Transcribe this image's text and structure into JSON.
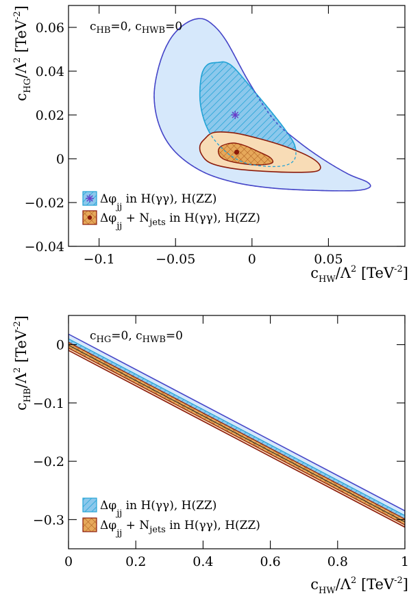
{
  "colors": {
    "blue_outer_fill": "#d6e8fb",
    "blue_outer_line": "#4646c8",
    "cyan_fill": "#8cc8ec",
    "cyan_line": "#23a3d6",
    "orange_outer_fill": "#f8dcb6",
    "orange_line": "#8b1a0a",
    "orange_inner_fill": "#e6a85a",
    "star": "#6a3cc8",
    "dot": "#8b1a0a"
  },
  "chart_data": [
    {
      "type": "contour",
      "panel": "top",
      "xlim": [
        -0.12,
        0.1
      ],
      "ylim": [
        -0.04,
        0.07
      ],
      "x_ticks": [
        -0.1,
        -0.05,
        0,
        0.05
      ],
      "y_ticks": [
        -0.04,
        -0.02,
        0,
        0.02,
        0.04,
        0.06
      ],
      "x_tick_labels": [
        "−0.1",
        "−0.05",
        "0",
        "0.05"
      ],
      "y_tick_labels": [
        "−0.04",
        "−0.02",
        "0",
        "0.02",
        "0.04",
        "0.06"
      ],
      "xlabel": {
        "main": "c",
        "sub": "HW",
        "rest": "/Λ",
        "sup": "2",
        "unit": " [TeV",
        "unit_sup": "-2",
        "close": "]"
      },
      "ylabel": {
        "main": "c",
        "sub": "HG",
        "rest": "/Λ",
        "sup": "2",
        "unit": " [TeV",
        "unit_sup": "-2",
        "close": "]"
      },
      "annotation": {
        "c1": "c",
        "s1": "HB",
        "t1": "=0,  c",
        "s2": "HWB",
        "t2": "=0"
      },
      "best_fit_dphi": [
        -0.011,
        0.02
      ],
      "best_fit_combined": [
        -0.01,
        0.003
      ],
      "contours": {
        "dphi_95": [
          [
            -0.035,
            0.064
          ],
          [
            -0.045,
            0.061
          ],
          [
            -0.054,
            0.054
          ],
          [
            -0.061,
            0.042
          ],
          [
            -0.064,
            0.028
          ],
          [
            -0.06,
            0.014
          ],
          [
            -0.05,
            0.003
          ],
          [
            -0.032,
            -0.006
          ],
          [
            -0.01,
            -0.011
          ],
          [
            0.015,
            -0.0135
          ],
          [
            0.045,
            -0.0145
          ],
          [
            0.068,
            -0.0145
          ],
          [
            0.077,
            -0.013
          ],
          [
            0.075,
            -0.0105
          ],
          [
            0.063,
            -0.007
          ],
          [
            0.046,
            0.0
          ],
          [
            0.03,
            0.008
          ],
          [
            0.014,
            0.018
          ],
          [
            -0.002,
            0.035
          ],
          [
            -0.017,
            0.054
          ],
          [
            -0.027,
            0.062
          ]
        ],
        "dphi_68": [
          [
            -0.022,
            0.044
          ],
          [
            -0.029,
            0.043
          ],
          [
            -0.033,
            0.038
          ],
          [
            -0.034,
            0.027
          ],
          [
            -0.031,
            0.017
          ],
          [
            -0.025,
            0.009
          ],
          [
            -0.015,
            0.002
          ],
          [
            -0.004,
            -0.002
          ],
          [
            0.01,
            -0.0035
          ],
          [
            0.022,
            -0.003
          ],
          [
            0.028,
            0.0
          ],
          [
            0.028,
            0.006
          ],
          [
            0.022,
            0.013
          ],
          [
            0.012,
            0.022
          ],
          [
            0.0,
            0.032
          ],
          [
            -0.011,
            0.041
          ],
          [
            -0.017,
            0.044
          ]
        ],
        "combined_95": [
          [
            -0.025,
            0.012
          ],
          [
            -0.031,
            0.009
          ],
          [
            -0.034,
            0.006
          ],
          [
            -0.033,
            0.002
          ],
          [
            -0.027,
            -0.002
          ],
          [
            -0.012,
            -0.0045
          ],
          [
            0.01,
            -0.0058
          ],
          [
            0.03,
            -0.0062
          ],
          [
            0.043,
            -0.0055
          ],
          [
            0.044,
            -0.0025
          ],
          [
            0.036,
            0.0015
          ],
          [
            0.02,
            0.006
          ],
          [
            0.003,
            0.0095
          ],
          [
            -0.012,
            0.0118
          ]
        ],
        "combined_68": [
          [
            -0.012,
            0.0072
          ],
          [
            -0.02,
            0.0058
          ],
          [
            -0.022,
            0.003
          ],
          [
            -0.019,
            0.0
          ],
          [
            -0.01,
            -0.0018
          ],
          [
            0.003,
            -0.0028
          ],
          [
            0.013,
            -0.002
          ],
          [
            0.012,
            0.0005
          ],
          [
            0.005,
            0.003
          ],
          [
            -0.004,
            0.0058
          ]
        ]
      },
      "legend": [
        {
          "name": "Δφjj in H(γγ), H(ZZ)",
          "symbol": "star"
        },
        {
          "name": "Δφjj + Njets in H(γγ), H(ZZ)",
          "symbol": "dot"
        }
      ]
    },
    {
      "type": "contour",
      "panel": "bottom",
      "xlim": [
        0,
        1
      ],
      "ylim": [
        -0.35,
        0.05
      ],
      "x_ticks": [
        0,
        0.2,
        0.4,
        0.6,
        0.8,
        1
      ],
      "y_ticks": [
        0,
        -0.1,
        -0.2,
        -0.3
      ],
      "x_tick_labels": [
        "0",
        "0.2",
        "0.4",
        "0.6",
        "0.8",
        "1"
      ],
      "y_tick_labels": [
        "0",
        "−0.1",
        "−0.2",
        "−0.3"
      ],
      "xlabel": {
        "main": "c",
        "sub": "HW",
        "rest": "/Λ",
        "sup": "2",
        "unit": " [TeV",
        "unit_sup": "-2",
        "close": "]"
      },
      "ylabel": {
        "main": "c",
        "sub": "HB",
        "rest": "/Λ",
        "sup": "2",
        "unit": " [TeV",
        "unit_sup": "-2",
        "close": "]"
      },
      "annotation": {
        "c1": "c",
        "s1": "HG",
        "t1": "=0,  c",
        "s2": "HWB",
        "t2": "=0"
      },
      "bands": {
        "dphi_95": {
          "upper": [
            [
              0,
              0.018
            ],
            [
              1,
              -0.285
            ]
          ],
          "lower": [
            [
              0,
              -0.007
            ],
            [
              1,
              -0.31
            ]
          ]
        },
        "dphi_68": {
          "upper": [
            [
              0,
              0.01
            ],
            [
              1,
              -0.293
            ]
          ],
          "lower": [
            [
              0,
              -0.002
            ],
            [
              1,
              -0.305
            ]
          ]
        },
        "combined_95": {
          "upper": [
            [
              0,
              0.008
            ],
            [
              1,
              -0.295
            ]
          ],
          "lower": [
            [
              0,
              -0.01
            ],
            [
              1,
              -0.313
            ]
          ]
        },
        "combined_68": {
          "upper": [
            [
              0,
              0.004
            ],
            [
              1,
              -0.299
            ]
          ],
          "lower": [
            [
              0,
              -0.006
            ],
            [
              1,
              -0.309
            ]
          ]
        }
      },
      "legend": [
        {
          "name": "Δφjj in H(γγ), H(ZZ)"
        },
        {
          "name": "Δφjj + Njets in H(γγ), H(ZZ)"
        }
      ]
    }
  ]
}
